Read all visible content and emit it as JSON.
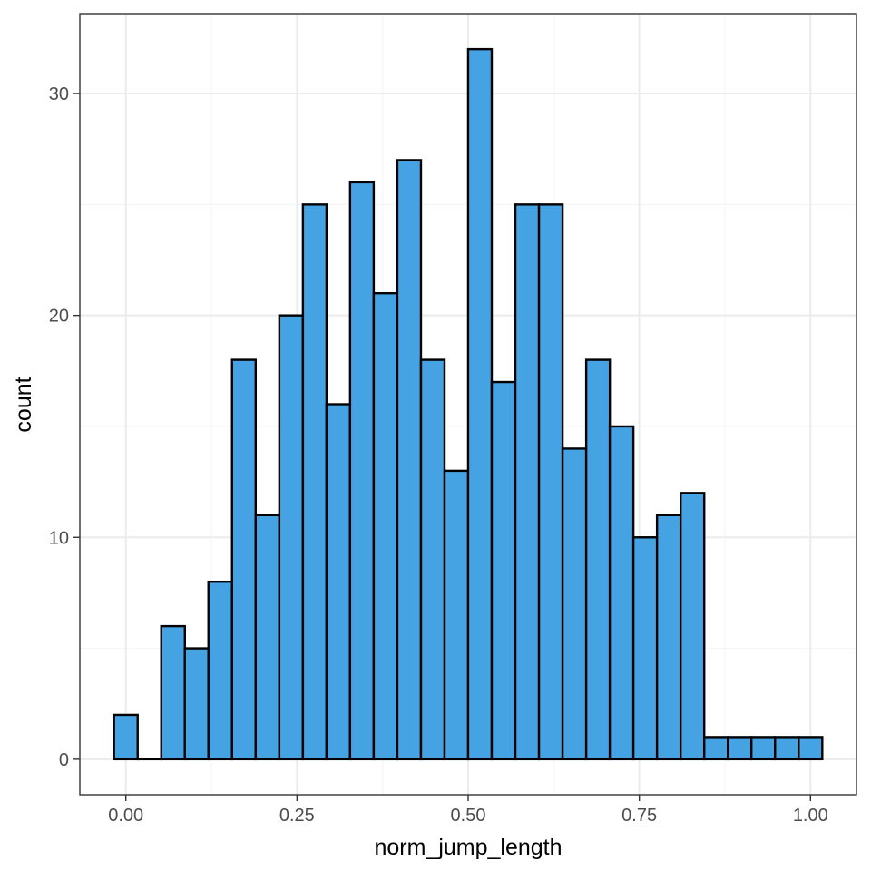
{
  "chart_data": {
    "type": "bar",
    "title": "",
    "xlabel": "norm_jump_length",
    "ylabel": "count",
    "bin_width": 0.0345,
    "bins": [
      {
        "x": 0.0,
        "count": 2
      },
      {
        "x": 0.0345,
        "count": 0
      },
      {
        "x": 0.069,
        "count": 6
      },
      {
        "x": 0.1034,
        "count": 5
      },
      {
        "x": 0.1379,
        "count": 8
      },
      {
        "x": 0.1724,
        "count": 18
      },
      {
        "x": 0.2069,
        "count": 11
      },
      {
        "x": 0.2414,
        "count": 20
      },
      {
        "x": 0.2759,
        "count": 25
      },
      {
        "x": 0.3103,
        "count": 16
      },
      {
        "x": 0.3448,
        "count": 26
      },
      {
        "x": 0.3793,
        "count": 21
      },
      {
        "x": 0.4138,
        "count": 27
      },
      {
        "x": 0.4483,
        "count": 18
      },
      {
        "x": 0.4828,
        "count": 13
      },
      {
        "x": 0.5172,
        "count": 32
      },
      {
        "x": 0.5517,
        "count": 17
      },
      {
        "x": 0.5862,
        "count": 25
      },
      {
        "x": 0.6207,
        "count": 25
      },
      {
        "x": 0.6552,
        "count": 14
      },
      {
        "x": 0.6897,
        "count": 18
      },
      {
        "x": 0.7241,
        "count": 15
      },
      {
        "x": 0.7586,
        "count": 10
      },
      {
        "x": 0.7931,
        "count": 11
      },
      {
        "x": 0.8276,
        "count": 12
      },
      {
        "x": 0.8621,
        "count": 1
      },
      {
        "x": 0.8966,
        "count": 1
      },
      {
        "x": 0.931,
        "count": 1
      },
      {
        "x": 0.9655,
        "count": 1
      },
      {
        "x": 1.0,
        "count": 1
      }
    ],
    "xlim": [
      -0.0672,
      1.0672
    ],
    "ylim": [
      -1.6,
      33.6
    ],
    "x_ticks": [
      {
        "value": 0,
        "label": "0.00"
      },
      {
        "value": 0.25,
        "label": "0.25"
      },
      {
        "value": 0.5,
        "label": "0.50"
      },
      {
        "value": 0.75,
        "label": "0.75"
      },
      {
        "value": 1.0,
        "label": "1.00"
      }
    ],
    "y_ticks": [
      {
        "value": 0,
        "label": "0"
      },
      {
        "value": 10,
        "label": "10"
      },
      {
        "value": 20,
        "label": "20"
      },
      {
        "value": 30,
        "label": "30"
      }
    ],
    "grid": true,
    "colors": {
      "bar_fill": "#46a3e3",
      "bar_stroke": "#000000",
      "grid_major": "#ebebeb",
      "grid_minor": "#f5f5f5",
      "panel_border": "#333333"
    }
  }
}
